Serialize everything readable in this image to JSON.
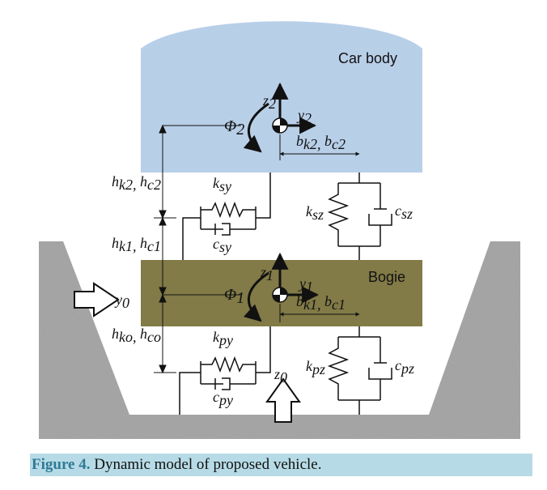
{
  "diagram": {
    "car_body_label": "Car body",
    "bogie_label": "Bogie",
    "sym": {
      "phi2": "Φ",
      "phi2_sub": "2",
      "phi1": "Φ",
      "phi1_sub": "1",
      "z2": "z",
      "z2_sub": "2",
      "y2": "y",
      "y2_sub": "2",
      "z1": "z",
      "z1_sub": "1",
      "y1": "y",
      "y1_sub": "1",
      "y0": "y",
      "y0_sub": "0",
      "z0": "z",
      "z0_sub": "0",
      "b2_a": "b",
      "b2_a_sub": "k2,",
      "b2_b": "b",
      "b2_b_sub": "c2",
      "b1_a": "b",
      "b1_a_sub": "k1,",
      "b1_b": "b",
      "b1_b_sub": "c1",
      "h2_a": "h",
      "h2_a_sub": "k2,",
      "h2_b": "h",
      "h2_b_sub": "c2",
      "h1_a": "h",
      "h1_a_sub": "k1,",
      "h1_b": "h",
      "h1_b_sub": "c1",
      "h0_a": "h",
      "h0_a_sub": "ko,",
      "h0_b": "h",
      "h0_b_sub": "co",
      "ksy": "k",
      "ksy_sub": "sy",
      "csy": "c",
      "csy_sub": "sy",
      "ksz": "k",
      "ksz_sub": "sz",
      "csz": "c",
      "csz_sub": "sz",
      "kpy": "k",
      "kpy_sub": "py",
      "cpy": "c",
      "cpy_sub": "py",
      "kpz": "k",
      "kpz_sub": "pz",
      "cpz": "c",
      "cpz_sub": "pz"
    },
    "colors": {
      "car_body": "#b8cfe8",
      "bogie": "#827a47",
      "ground": "#9c9c9c",
      "line": "#111111"
    }
  },
  "caption": {
    "label": "Figure 4.",
    "text": " Dynamic model of proposed vehicle."
  }
}
